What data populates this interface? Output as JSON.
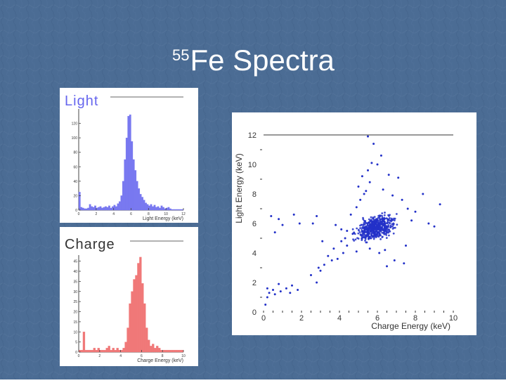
{
  "slide": {
    "title_sup": "55",
    "title_main": "Fe Spectra",
    "background": "#4a6b93"
  },
  "chart_data": [
    {
      "type": "bar",
      "label": "Light",
      "color": "#7878f0",
      "xlabel": "Light Energy (keV)",
      "xlim": [
        0,
        12
      ],
      "ylim": [
        0,
        140
      ],
      "xticks": [
        "0",
        "2",
        "4",
        "6",
        "8",
        "10",
        "12"
      ],
      "yticks": [
        "0",
        "20",
        "40",
        "60",
        "80",
        "100",
        "120"
      ],
      "bin_width": 0.2,
      "values": [
        25,
        4,
        3,
        2,
        2,
        3,
        8,
        5,
        4,
        6,
        3,
        4,
        5,
        3,
        4,
        5,
        4,
        6,
        3,
        5,
        7,
        5,
        9,
        12,
        20,
        40,
        70,
        100,
        130,
        132,
        95,
        70,
        55,
        40,
        30,
        22,
        18,
        14,
        10,
        8,
        6,
        8,
        5,
        7,
        4,
        5,
        3,
        6,
        4,
        2,
        3,
        4,
        2,
        1,
        1,
        1,
        1,
        1,
        1,
        1
      ]
    },
    {
      "type": "bar",
      "label": "Charge",
      "color": "#f07878",
      "xlabel": "Charge Energy (keV)",
      "xlim": [
        0,
        10
      ],
      "ylim": [
        0,
        48
      ],
      "xticks": [
        "0",
        "2",
        "4",
        "6",
        "8",
        "10"
      ],
      "yticks": [
        "0",
        "5",
        "10",
        "15",
        "20",
        "25",
        "30",
        "35",
        "40",
        "45"
      ],
      "bin_width": 0.2,
      "values": [
        1,
        1,
        10,
        1,
        1,
        1,
        1,
        2,
        1,
        2,
        1,
        1,
        1,
        2,
        3,
        1,
        2,
        1,
        2,
        1,
        1,
        2,
        5,
        12,
        24,
        30,
        36,
        38,
        44,
        47,
        34,
        24,
        12,
        6,
        3,
        4,
        2,
        3,
        2,
        1,
        1,
        1,
        1,
        1,
        1,
        1,
        1,
        1,
        1,
        1
      ]
    },
    {
      "type": "scatter",
      "color": "#2230c8",
      "xlabel": "Charge Energy (keV)",
      "ylabel": "Light Energy (keV)",
      "xlim": [
        0,
        10
      ],
      "ylim": [
        0,
        12
      ],
      "xticks": [
        "0",
        "2",
        "4",
        "6",
        "8",
        "10"
      ],
      "yticks": [
        "0",
        "2",
        "4",
        "6",
        "8",
        "10",
        "12"
      ],
      "cluster": {
        "x_center": 5.9,
        "y_center": 5.7,
        "note": "dense cluster of several hundred events near (5.9, 5.7) keV"
      },
      "points": [
        [
          0.1,
          0.5
        ],
        [
          0.2,
          1.0
        ],
        [
          0.3,
          1.3
        ],
        [
          0.5,
          1.5
        ],
        [
          0.2,
          1.6
        ],
        [
          0.6,
          1.2
        ],
        [
          0.9,
          1.4
        ],
        [
          1.2,
          1.6
        ],
        [
          1.4,
          1.3
        ],
        [
          1.8,
          1.5
        ],
        [
          1.5,
          1.8
        ],
        [
          0.8,
          1.9
        ],
        [
          2.8,
          2.0
        ],
        [
          2.5,
          2.5
        ],
        [
          3.0,
          2.8
        ],
        [
          3.2,
          3.2
        ],
        [
          3.6,
          3.5
        ],
        [
          3.9,
          3.6
        ],
        [
          4.2,
          4.0
        ],
        [
          4.4,
          4.5
        ],
        [
          3.4,
          3.8
        ],
        [
          2.9,
          3.0
        ],
        [
          4.1,
          4.8
        ],
        [
          3.7,
          4.3
        ],
        [
          0.8,
          6.3
        ],
        [
          0.4,
          6.5
        ],
        [
          1.0,
          5.9
        ],
        [
          0.6,
          5.4
        ],
        [
          1.6,
          6.6
        ],
        [
          1.9,
          6.0
        ],
        [
          2.8,
          6.5
        ],
        [
          2.6,
          6.0
        ],
        [
          3.8,
          5.9
        ],
        [
          4.1,
          5.6
        ],
        [
          4.4,
          5.5
        ],
        [
          4.7,
          5.3
        ],
        [
          4.6,
          6.6
        ],
        [
          4.9,
          7.1
        ],
        [
          5.1,
          7.6
        ],
        [
          5.3,
          8.0
        ],
        [
          5.0,
          8.5
        ],
        [
          5.4,
          8.2
        ],
        [
          5.6,
          8.8
        ],
        [
          5.2,
          9.2
        ],
        [
          5.5,
          9.6
        ],
        [
          5.7,
          10.1
        ],
        [
          6.0,
          10.0
        ],
        [
          5.8,
          11.4
        ],
        [
          5.5,
          11.9
        ],
        [
          6.2,
          10.6
        ],
        [
          6.6,
          9.3
        ],
        [
          7.1,
          9.1
        ],
        [
          6.3,
          8.3
        ],
        [
          6.8,
          7.9
        ],
        [
          7.3,
          7.6
        ],
        [
          7.6,
          7.0
        ],
        [
          8.0,
          6.8
        ],
        [
          8.7,
          6.0
        ],
        [
          9.0,
          5.8
        ],
        [
          9.3,
          7.3
        ],
        [
          8.4,
          8.0
        ],
        [
          7.5,
          4.5
        ],
        [
          6.4,
          4.2
        ],
        [
          6.9,
          3.5
        ],
        [
          6.5,
          3.1
        ],
        [
          7.4,
          3.3
        ],
        [
          5.6,
          4.3
        ],
        [
          4.9,
          4.1
        ],
        [
          3.1,
          4.8
        ],
        [
          6.1,
          4.0
        ],
        [
          7.8,
          6.2
        ],
        [
          4.3,
          5.0
        ]
      ]
    }
  ],
  "panels": {
    "light_label": "Light",
    "charge_label": "Charge"
  }
}
